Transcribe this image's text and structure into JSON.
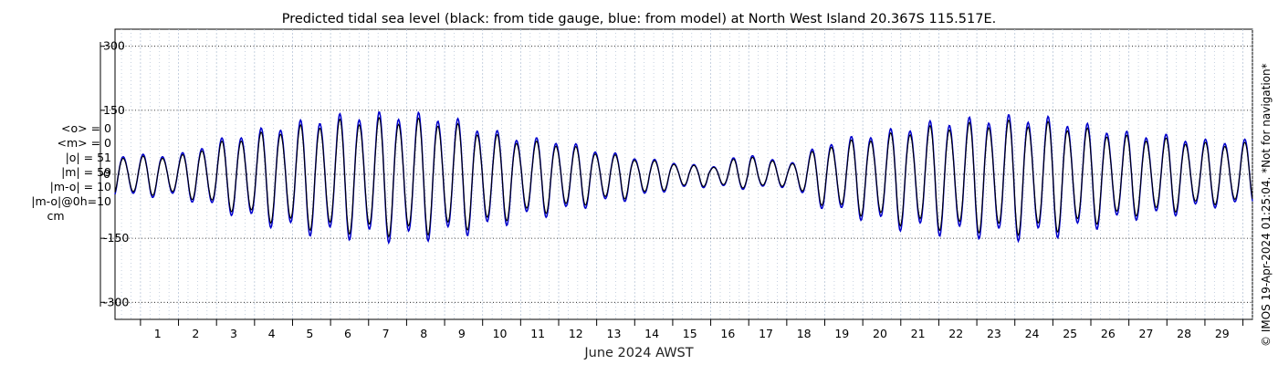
{
  "chart_data": {
    "type": "line",
    "title": "Predicted tidal sea level (black: from tide gauge, blue: from model) at North West Island 20.367S 115.517E.",
    "xlabel": "June 2024 AWST",
    "ylabel": "",
    "ylim": [
      -340,
      340
    ],
    "yticks": [
      300,
      150,
      0,
      -150,
      -300
    ],
    "ytick_labels": [
      "300",
      "150",
      "0",
      "-150",
      "-300"
    ],
    "xlim": [
      0.33,
      30.25
    ],
    "xticks": [
      1,
      2,
      3,
      4,
      5,
      6,
      7,
      8,
      9,
      10,
      11,
      12,
      13,
      14,
      15,
      16,
      17,
      18,
      19,
      20,
      21,
      22,
      23,
      24,
      25,
      26,
      27,
      28,
      29
    ],
    "xtick_labels": [
      "1",
      "2",
      "3",
      "4",
      "5",
      "6",
      "7",
      "8",
      "9",
      "10",
      "11",
      "12",
      "13",
      "14",
      "15",
      "16",
      "17",
      "18",
      "19",
      "20",
      "21",
      "22",
      "23",
      "24",
      "25",
      "26",
      "27",
      "28",
      "29"
    ],
    "grid": true,
    "series": [
      {
        "name": "tide gauge",
        "color": "#000000",
        "x_start": 0.33,
        "hourly_step_days": 0.04167,
        "description": "Semi-diurnal spring-neap tide; range ~ +130/-135 cm at springs (Jun 6-9, Jun 23-25), ~ +15/-25 cm at neaps (Jun 15-17)",
        "daily_high_low": [
          {
            "day": 1,
            "high": 40,
            "low": -45
          },
          {
            "day": 2,
            "high": 40,
            "low": -45
          },
          {
            "day": 3,
            "high": 70,
            "low": -70
          },
          {
            "day": 4,
            "high": 90,
            "low": -95
          },
          {
            "day": 5,
            "high": 105,
            "low": -115
          },
          {
            "day": 6,
            "high": 120,
            "low": -125
          },
          {
            "day": 7,
            "high": 125,
            "low": -130
          },
          {
            "day": 8,
            "high": 125,
            "low": -135
          },
          {
            "day": 9,
            "high": 120,
            "low": -125
          },
          {
            "day": 10,
            "high": 95,
            "low": -115
          },
          {
            "day": 11,
            "high": 75,
            "low": -90
          },
          {
            "day": 12,
            "high": 70,
            "low": -80
          },
          {
            "day": 13,
            "high": 50,
            "low": -60
          },
          {
            "day": 14,
            "high": 35,
            "low": -50
          },
          {
            "day": 15,
            "high": 25,
            "low": -30
          },
          {
            "day": 16,
            "high": 15,
            "low": -25
          },
          {
            "day": 17,
            "high": 45,
            "low": -30
          },
          {
            "day": 18,
            "high": 20,
            "low": -25
          },
          {
            "day": 19,
            "high": 65,
            "low": -70
          },
          {
            "day": 20,
            "high": 80,
            "low": -90
          },
          {
            "day": 21,
            "high": 95,
            "low": -110
          },
          {
            "day": 22,
            "high": 110,
            "low": -120
          },
          {
            "day": 23,
            "high": 115,
            "low": -125
          },
          {
            "day": 24,
            "high": 120,
            "low": -130
          },
          {
            "day": 25,
            "high": 115,
            "low": -125
          },
          {
            "day": 26,
            "high": 100,
            "low": -110
          },
          {
            "day": 27,
            "high": 85,
            "low": -90
          },
          {
            "day": 28,
            "high": 80,
            "low": -85
          },
          {
            "day": 29,
            "high": 70,
            "low": -65
          }
        ]
      },
      {
        "name": "model",
        "color": "#0000cc",
        "x_start": 0.33,
        "hourly_step_days": 0.04167,
        "description": "Model prediction, closely tracks gauge with slightly larger amplitude",
        "amplitude_ratio_vs_gauge": 1.1
      }
    ]
  },
  "stats": {
    "mean_obs": "<o> = 0",
    "mean_model": "<m> = 0",
    "abs_obs": "|o| = 51",
    "abs_model": "|m| = 59",
    "abs_diff": "|m-o| = 10",
    "abs_diff_0h": "|m-o|@0h=10",
    "unit": "cm"
  },
  "watermark": "© IMOS 19-Apr-2024 01:25:04. *Not for navigation*",
  "colors": {
    "gauge": "#000000",
    "model": "#0000cc",
    "grid_x": "#b8c6d8",
    "grid_y": "#000000",
    "axes": "#000000"
  }
}
